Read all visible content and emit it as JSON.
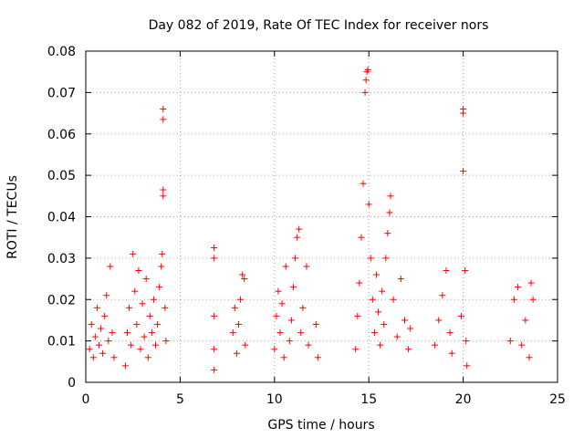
{
  "chart_data": {
    "type": "scatter",
    "title": "Day 082 of 2019, Rate Of TEC Index for receiver nors",
    "xlabel": "GPS time / hours",
    "ylabel": "ROTI / TECUs",
    "xlim": [
      0,
      25
    ],
    "ylim": [
      0,
      0.08
    ],
    "xticks": [
      0,
      5,
      10,
      15,
      20,
      25
    ],
    "yticks": [
      0,
      0.01,
      0.02,
      0.03,
      0.04,
      0.05,
      0.06,
      0.07,
      0.08
    ],
    "xtick_labels": [
      "0",
      "5",
      "10",
      "15",
      "20",
      "25"
    ],
    "ytick_labels": [
      "0",
      "0.01",
      "0.02",
      "0.03",
      "0.04",
      "0.05",
      "0.06",
      "0.07",
      "0.08"
    ],
    "grid": true,
    "marker": "plus",
    "color": "#ff0000",
    "series": [
      {
        "points": [
          [
            0.2,
            0.008
          ],
          [
            0.3,
            0.014
          ],
          [
            0.4,
            0.006
          ],
          [
            0.5,
            0.011
          ],
          [
            0.6,
            0.018
          ],
          [
            0.7,
            0.009
          ],
          [
            0.8,
            0.013
          ],
          [
            0.9,
            0.007
          ],
          [
            1.0,
            0.016
          ],
          [
            1.1,
            0.021
          ],
          [
            1.2,
            0.01
          ],
          [
            1.3,
            0.028
          ],
          [
            1.4,
            0.012
          ],
          [
            1.5,
            0.006
          ],
          [
            2.1,
            0.004
          ],
          [
            2.2,
            0.012
          ],
          [
            2.3,
            0.018
          ],
          [
            2.4,
            0.009
          ],
          [
            2.5,
            0.031
          ],
          [
            2.6,
            0.022
          ],
          [
            2.7,
            0.014
          ],
          [
            2.8,
            0.027
          ],
          [
            2.9,
            0.008
          ],
          [
            3.0,
            0.019
          ],
          [
            3.1,
            0.011
          ],
          [
            3.2,
            0.025
          ],
          [
            3.3,
            0.006
          ],
          [
            3.4,
            0.016
          ],
          [
            3.5,
            0.012
          ],
          [
            3.6,
            0.02
          ],
          [
            3.7,
            0.009
          ],
          [
            3.8,
            0.014
          ],
          [
            3.9,
            0.023
          ],
          [
            4.0,
            0.028
          ],
          [
            4.05,
            0.031
          ],
          [
            4.1,
            0.045
          ],
          [
            4.1,
            0.0465
          ],
          [
            4.1,
            0.0635
          ],
          [
            4.1,
            0.066
          ],
          [
            4.2,
            0.018
          ],
          [
            4.25,
            0.01
          ],
          [
            6.8,
            0.0325
          ],
          [
            6.8,
            0.03
          ],
          [
            6.8,
            0.016
          ],
          [
            6.8,
            0.008
          ],
          [
            6.8,
            0.003
          ],
          [
            7.8,
            0.012
          ],
          [
            7.9,
            0.018
          ],
          [
            8.0,
            0.007
          ],
          [
            8.1,
            0.014
          ],
          [
            8.2,
            0.02
          ],
          [
            8.3,
            0.026
          ],
          [
            8.4,
            0.025
          ],
          [
            8.45,
            0.009
          ],
          [
            10.0,
            0.008
          ],
          [
            10.1,
            0.016
          ],
          [
            10.2,
            0.022
          ],
          [
            10.3,
            0.012
          ],
          [
            10.4,
            0.019
          ],
          [
            10.5,
            0.006
          ],
          [
            10.6,
            0.028
          ],
          [
            10.8,
            0.01
          ],
          [
            10.9,
            0.015
          ],
          [
            11.0,
            0.023
          ],
          [
            11.1,
            0.03
          ],
          [
            11.2,
            0.035
          ],
          [
            11.3,
            0.037
          ],
          [
            11.4,
            0.012
          ],
          [
            11.5,
            0.018
          ],
          [
            11.7,
            0.028
          ],
          [
            11.8,
            0.009
          ],
          [
            12.2,
            0.014
          ],
          [
            12.3,
            0.006
          ],
          [
            14.3,
            0.008
          ],
          [
            14.4,
            0.016
          ],
          [
            14.5,
            0.024
          ],
          [
            14.6,
            0.035
          ],
          [
            14.7,
            0.048
          ],
          [
            14.8,
            0.07
          ],
          [
            14.85,
            0.073
          ],
          [
            14.9,
            0.075
          ],
          [
            14.95,
            0.0755
          ],
          [
            15.0,
            0.043
          ],
          [
            15.1,
            0.03
          ],
          [
            15.2,
            0.02
          ],
          [
            15.3,
            0.012
          ],
          [
            15.4,
            0.026
          ],
          [
            15.5,
            0.017
          ],
          [
            15.6,
            0.009
          ],
          [
            15.7,
            0.022
          ],
          [
            15.8,
            0.014
          ],
          [
            15.9,
            0.03
          ],
          [
            16.0,
            0.036
          ],
          [
            16.1,
            0.041
          ],
          [
            16.15,
            0.045
          ],
          [
            16.3,
            0.02
          ],
          [
            16.5,
            0.011
          ],
          [
            16.7,
            0.025
          ],
          [
            16.9,
            0.015
          ],
          [
            17.1,
            0.008
          ],
          [
            17.2,
            0.013
          ],
          [
            18.5,
            0.009
          ],
          [
            18.7,
            0.015
          ],
          [
            18.9,
            0.021
          ],
          [
            19.1,
            0.027
          ],
          [
            19.3,
            0.012
          ],
          [
            19.4,
            0.007
          ],
          [
            19.9,
            0.016
          ],
          [
            20.0,
            0.051
          ],
          [
            20.0,
            0.065
          ],
          [
            20.0,
            0.066
          ],
          [
            20.1,
            0.027
          ],
          [
            20.15,
            0.01
          ],
          [
            20.2,
            0.004
          ],
          [
            22.5,
            0.01
          ],
          [
            22.7,
            0.02
          ],
          [
            22.9,
            0.023
          ],
          [
            23.1,
            0.009
          ],
          [
            23.3,
            0.015
          ],
          [
            23.5,
            0.006
          ],
          [
            23.6,
            0.024
          ],
          [
            23.7,
            0.02
          ]
        ]
      }
    ]
  }
}
